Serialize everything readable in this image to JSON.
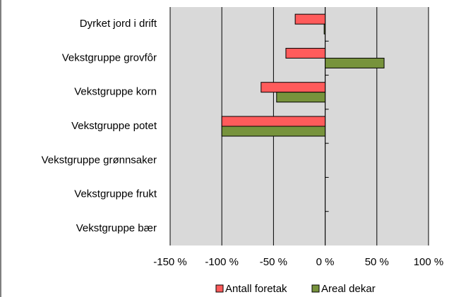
{
  "chart_data": {
    "type": "barh",
    "categories": [
      "Dyrket jord i drift",
      "Vekstgruppe grovfôr",
      "Vekstgruppe korn",
      "Vekstgruppe potet",
      "Vekstgruppe grønnsaker",
      "Vekstgruppe frukt",
      "Vekstgruppe bær"
    ],
    "series": [
      {
        "name": "Antall foretak",
        "color": "#ff5b5b",
        "values": [
          -29,
          -38,
          -62,
          -100,
          0,
          0,
          0
        ]
      },
      {
        "name": "Areal dekar",
        "color": "#77933c",
        "values": [
          -1,
          57,
          -47,
          -100,
          0,
          0,
          0
        ]
      }
    ],
    "xlim": [
      -150,
      100
    ],
    "xticks": [
      {
        "value": -150,
        "label": "-150 %"
      },
      {
        "value": -100,
        "label": "-100 %"
      },
      {
        "value": -50,
        "label": "-50 %"
      },
      {
        "value": 0,
        "label": "0 %"
      },
      {
        "value": 50,
        "label": "50 %"
      },
      {
        "value": 100,
        "label": "100 %"
      }
    ],
    "grid": true
  }
}
